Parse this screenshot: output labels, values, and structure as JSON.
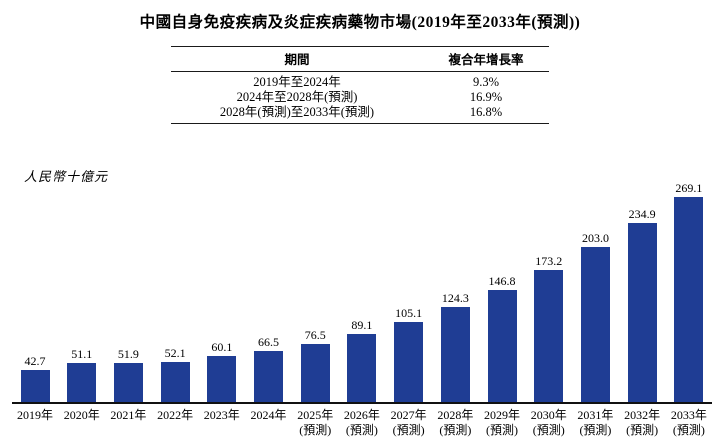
{
  "title": "中國自身免疫疾病及炎症疾病藥物市場(2019年至2033年(預測))",
  "table": {
    "headers": [
      "期間",
      "複合年增長率"
    ],
    "rows": [
      [
        "2019年至2024年",
        "9.3%"
      ],
      [
        "2024年至2028年(預測)",
        "16.9%"
      ],
      [
        "2028年(預測)至2033年(預測)",
        "16.8%"
      ]
    ]
  },
  "chart_data": {
    "type": "bar",
    "title": "中國自身免疫疾病及炎症疾病藥物市場(2019年至2033年(預測))",
    "unit": "人民幣十億元",
    "ylabel": "人民幣十億元",
    "categories": [
      "2019年",
      "2020年",
      "2021年",
      "2022年",
      "2023年",
      "2024年",
      "2025年",
      "2026年",
      "2027年",
      "2028年",
      "2029年",
      "2030年",
      "2031年",
      "2032年",
      "2033年"
    ],
    "sublabels": [
      "",
      "",
      "",
      "",
      "",
      "",
      "(預測)",
      "(預測)",
      "(預測)",
      "(預測)",
      "(預測)",
      "(預測)",
      "(預測)",
      "(預測)",
      "(預測)"
    ],
    "values": [
      42.7,
      51.1,
      51.9,
      52.1,
      60.1,
      66.5,
      76.5,
      89.1,
      105.1,
      124.3,
      146.8,
      173.2,
      203.0,
      234.9,
      269.1
    ],
    "value_labels": [
      "42.7",
      "51.1",
      "51.9",
      "52.1",
      "60.1",
      "66.5",
      "76.5",
      "89.1",
      "105.1",
      "124.3",
      "146.8",
      "173.2",
      "203.0",
      "234.9",
      "269.1"
    ],
    "ylim": [
      0,
      280
    ],
    "grid": false,
    "legend": false,
    "bar_color": "#1F3D94",
    "axis_color": "#111111"
  }
}
